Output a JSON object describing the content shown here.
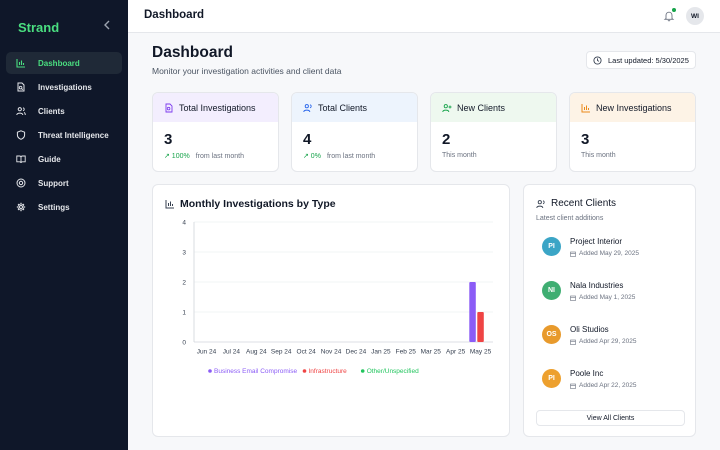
{
  "sidebar": {
    "brand": "Strand",
    "collapse_icon": "chevron-left-icon",
    "items": [
      {
        "label": "Dashboard",
        "icon": "bar-chart-icon",
        "active": true
      },
      {
        "label": "Investigations",
        "icon": "file-search-icon"
      },
      {
        "label": "Clients",
        "icon": "users-icon"
      },
      {
        "label": "Threat Intelligence",
        "icon": "shield-icon"
      },
      {
        "label": "Guide",
        "icon": "book-open-icon"
      },
      {
        "label": "Support",
        "icon": "life-buoy-icon"
      },
      {
        "label": "Settings",
        "icon": "gear-icon"
      }
    ]
  },
  "topbar": {
    "title": "Dashboard",
    "avatar": "WI"
  },
  "header": {
    "title": "Dashboard",
    "subtitle": "Monitor your investigation activities and client data",
    "updated": "Last updated: 5/30/2025"
  },
  "stats": [
    {
      "label": "Total Investigations",
      "value": "3",
      "pct": "↗ 100%",
      "foot": "from last month",
      "color": "#f3eefe",
      "icon": "file-search-icon"
    },
    {
      "label": "Total Clients",
      "value": "4",
      "pct": "↗ 0%",
      "foot": "from last month",
      "color": "#edf4fd",
      "icon": "users-icon"
    },
    {
      "label": "New Clients",
      "value": "2",
      "pct": "",
      "foot": "This month",
      "color": "#eef8ef",
      "icon": "user-plus-icon"
    },
    {
      "label": "New Investigations",
      "value": "3",
      "pct": "",
      "foot": "This month",
      "color": "#fdf3e6",
      "icon": "bar-chart-icon"
    }
  ],
  "chart_data": {
    "type": "bar",
    "title": "Monthly Investigations by Type",
    "categories": [
      "Jun 24",
      "Jul 24",
      "Aug 24",
      "Sep 24",
      "Oct 24",
      "Nov 24",
      "Dec 24",
      "Jan 25",
      "Feb 25",
      "Mar 25",
      "Apr 25",
      "May 25"
    ],
    "series": [
      {
        "name": "Business Email Compromise",
        "color": "#8b5cf6",
        "values": [
          0,
          0,
          0,
          0,
          0,
          0,
          0,
          0,
          0,
          0,
          0,
          2
        ]
      },
      {
        "name": "Infrastructure",
        "color": "#ef4444",
        "values": [
          0,
          0,
          0,
          0,
          0,
          0,
          0,
          0,
          0,
          0,
          0,
          1
        ]
      },
      {
        "name": "Other/Unspecified",
        "color": "#22c55e",
        "values": [
          0,
          0,
          0,
          0,
          0,
          0,
          0,
          0,
          0,
          0,
          0,
          0
        ]
      }
    ],
    "yticks": [
      "0",
      "1",
      "2",
      "3",
      "4"
    ],
    "ylim": [
      0,
      4
    ],
    "grid": true,
    "legend": "bottom"
  },
  "recent": {
    "title": "Recent Clients",
    "subtitle": "Latest client additions",
    "clients": [
      {
        "initials": "PI",
        "name": "Project Interior",
        "date": "Added May 29, 2025",
        "color": "#3ba5c6"
      },
      {
        "initials": "NI",
        "name": "Nala Industries",
        "date": "Added May 1, 2025",
        "color": "#3fae72"
      },
      {
        "initials": "OS",
        "name": "Oli Studios",
        "date": "Added Apr 29, 2025",
        "color": "#e89a2c"
      },
      {
        "initials": "PI",
        "name": "Poole Inc",
        "date": "Added Apr 22, 2025",
        "color": "#eda02e"
      }
    ],
    "view_all": "View All Clients"
  }
}
